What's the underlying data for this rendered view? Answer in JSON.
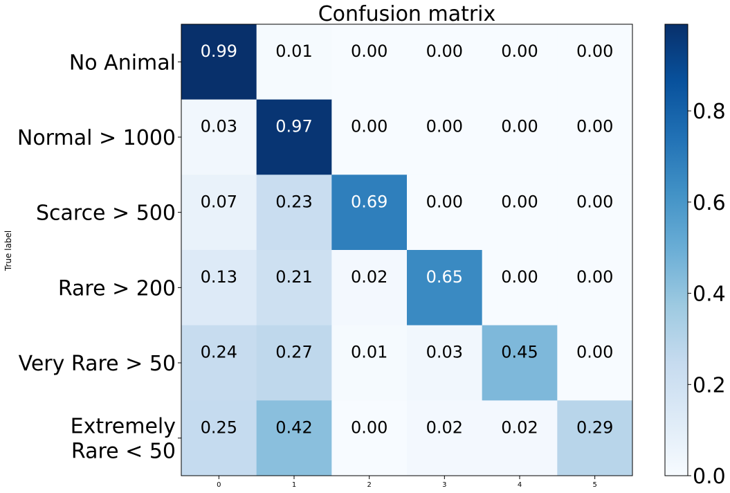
{
  "chart_data": {
    "type": "heatmap",
    "title": "Confusion matrix",
    "ylabel": "True label",
    "xlabel": "",
    "row_labels": [
      "No Animal",
      "Normal > 1000",
      "Scarce > 500",
      "Rare > 200",
      "Very Rare > 50",
      "Extremely Rare < 50"
    ],
    "col_labels": [
      "0",
      "1",
      "2",
      "3",
      "4",
      "5"
    ],
    "values": [
      [
        0.99,
        0.01,
        0.0,
        0.0,
        0.0,
        0.0
      ],
      [
        0.03,
        0.97,
        0.0,
        0.0,
        0.0,
        0.0
      ],
      [
        0.07,
        0.23,
        0.69,
        0.0,
        0.0,
        0.0
      ],
      [
        0.13,
        0.21,
        0.02,
        0.65,
        0.0,
        0.0
      ],
      [
        0.24,
        0.27,
        0.01,
        0.03,
        0.45,
        0.0
      ],
      [
        0.25,
        0.42,
        0.0,
        0.02,
        0.02,
        0.29
      ]
    ],
    "colormap": "Blues",
    "vmin": 0.0,
    "vmax": 0.99,
    "colorbar": {
      "ticks": [
        0.0,
        0.2,
        0.4,
        0.6,
        0.8
      ],
      "tick_labels": [
        "0.0",
        "0.2",
        "0.4",
        "0.6",
        "0.8"
      ]
    },
    "grid": false
  }
}
